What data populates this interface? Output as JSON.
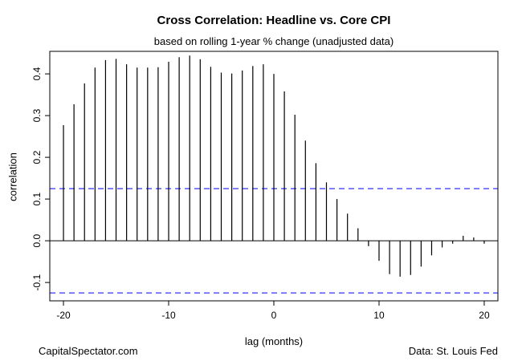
{
  "footer": {
    "left": "CapitalSpectator.com",
    "right": "Data: St. Louis Fed"
  },
  "chart_data": {
    "type": "bar",
    "style": "ccf-stem-plot",
    "title": "Cross Correlation: Headline vs. Core CPI",
    "subtitle": "based on rolling 1-year % change (unadjusted data)",
    "xlabel": "lag (months)",
    "ylabel": "correlation",
    "xlim": [
      -21.3,
      21.3
    ],
    "ylim": [
      -0.144,
      0.454
    ],
    "x_ticks": [
      -20,
      -10,
      0,
      10,
      20
    ],
    "x_tick_labels": [
      "-20",
      "-10",
      "0",
      "10",
      "20"
    ],
    "y_ticks": [
      -0.1,
      0.0,
      0.1,
      0.2,
      0.3,
      0.4
    ],
    "y_tick_labels": [
      "-0.1",
      "0.0",
      "0.1",
      "0.2",
      "0.3",
      "0.4"
    ],
    "grid": false,
    "legend": null,
    "confidence_band": 0.125,
    "confidence_color": "#0000ff",
    "stem_color": "#000000",
    "lags": [
      -20,
      -19,
      -18,
      -17,
      -16,
      -15,
      -14,
      -13,
      -12,
      -11,
      -10,
      -9,
      -8,
      -7,
      -6,
      -5,
      -4,
      -3,
      -2,
      -1,
      0,
      1,
      2,
      3,
      4,
      5,
      6,
      7,
      8,
      9,
      10,
      11,
      12,
      13,
      14,
      15,
      16,
      17,
      18,
      19,
      20
    ],
    "values": [
      0.277,
      0.327,
      0.377,
      0.415,
      0.433,
      0.436,
      0.423,
      0.415,
      0.415,
      0.416,
      0.429,
      0.44,
      0.444,
      0.435,
      0.417,
      0.403,
      0.401,
      0.408,
      0.419,
      0.423,
      0.4,
      0.358,
      0.302,
      0.24,
      0.186,
      0.14,
      0.1,
      0.065,
      0.03,
      -0.013,
      -0.048,
      -0.08,
      -0.086,
      -0.082,
      -0.062,
      -0.035,
      -0.016,
      -0.007,
      0.012,
      0.008,
      -0.007
    ]
  }
}
